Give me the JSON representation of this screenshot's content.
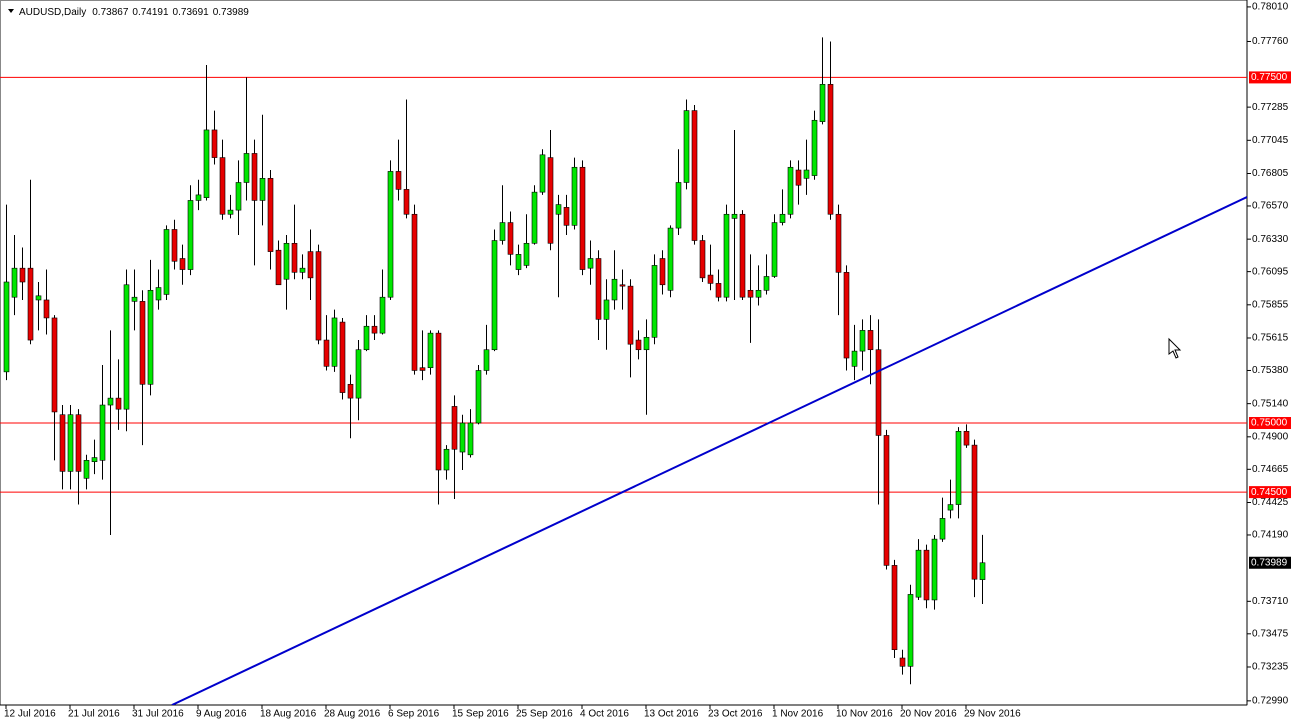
{
  "chart_data": {
    "type": "candlestick",
    "title": "AUDUSD,Daily",
    "header_ohlc": [
      0.73867,
      0.74191,
      0.73691,
      0.73989
    ],
    "up_color": "#00e600",
    "down_color": "#e60000",
    "level_color": "#ff0000",
    "categories": [
      "12 Jul 2016",
      null,
      null,
      null,
      null,
      null,
      null,
      null,
      "21 Jul 2016",
      null,
      null,
      null,
      null,
      null,
      null,
      null,
      "31 Jul 2016",
      null,
      null,
      null,
      null,
      null,
      null,
      null,
      "9 Aug 2016",
      null,
      null,
      null,
      null,
      null,
      null,
      null,
      "18 Aug 2016",
      null,
      null,
      null,
      null,
      null,
      null,
      null,
      "28 Aug 2016",
      null,
      null,
      null,
      null,
      null,
      null,
      null,
      "6 Sep 2016",
      null,
      null,
      null,
      null,
      null,
      null,
      null,
      "15 Sep 2016",
      null,
      null,
      null,
      null,
      null,
      null,
      null,
      "25 Sep 2016",
      null,
      null,
      null,
      null,
      null,
      null,
      null,
      "4 Oct 2016",
      null,
      null,
      null,
      null,
      null,
      null,
      null,
      "13 Oct 2016",
      null,
      null,
      null,
      null,
      null,
      null,
      null,
      "23 Oct 2016",
      null,
      null,
      null,
      null,
      null,
      null,
      null,
      "1 Nov 2016",
      null,
      null,
      null,
      null,
      null,
      null,
      null,
      "10 Nov 2016",
      null,
      null,
      null,
      null,
      null,
      null,
      null,
      "20 Nov 2016",
      null,
      null,
      null,
      null,
      null,
      null,
      null,
      "29 Nov 2016",
      null,
      null
    ],
    "open": [
      0.7537,
      0.7591,
      0.7612,
      0.7612,
      0.7589,
      0.7589,
      0.7576,
      0.7506,
      0.7465,
      0.7506,
      0.746,
      0.7472,
      0.7473,
      0.7513,
      0.7518,
      0.751,
      0.7588,
      0.7588,
      0.7528,
      0.7589,
      0.7593,
      0.764,
      0.7619,
      0.7611,
      0.7661,
      0.7663,
      0.7712,
      0.7692,
      0.7651,
      0.7654,
      0.7674,
      0.7695,
      0.7661,
      0.7677,
      0.7625,
      0.7604,
      0.763,
      0.7609,
      0.7624,
      0.7624,
      0.756,
      0.7541,
      0.7573,
      0.7528,
      0.7518,
      0.7553,
      0.757,
      0.7565,
      0.7591,
      0.7682,
      0.7669,
      0.7651,
      0.754,
      0.754,
      0.7565,
      0.7466,
      0.7512,
      0.7479,
      0.7477,
      0.75,
      0.7538,
      0.7553,
      0.7632,
      0.7645,
      0.7611,
      0.7614,
      0.763,
      0.7667,
      0.7692,
      0.7651,
      0.7656,
      0.7643,
      0.7685,
      0.7612,
      0.7619,
      0.7575,
      0.7589,
      0.76,
      0.7599,
      0.756,
      0.7553,
      0.7562,
      0.7619,
      0.7596,
      0.7641,
      0.7674,
      0.7726,
      0.7632,
      0.7607,
      0.7601,
      0.7591,
      0.7648,
      0.7651,
      0.7596,
      0.7591,
      0.7596,
      0.7606,
      0.7645,
      0.7651,
      0.7683,
      0.7677,
      0.7679,
      0.7718,
      0.7745,
      0.7651,
      0.7609,
      0.7541,
      0.7552,
      0.7567,
      0.7553,
      0.7491,
      0.7397,
      0.733,
      0.7324,
      0.7374,
      0.7408,
      0.7372,
      0.7416,
      0.7437,
      0.7441,
      0.7494,
      0.7484,
      0.73867
    ],
    "high": [
      0.7658,
      0.7636,
      0.7627,
      0.7676,
      0.7602,
      0.7611,
      0.7578,
      0.7513,
      0.7513,
      0.751,
      0.7477,
      0.7488,
      0.7542,
      0.7567,
      0.7546,
      0.7611,
      0.7611,
      0.7596,
      0.7618,
      0.7611,
      0.7643,
      0.7647,
      0.7629,
      0.7672,
      0.7676,
      0.7759,
      0.7726,
      0.7705,
      0.7665,
      0.769,
      0.775,
      0.7705,
      0.7723,
      0.7683,
      0.7632,
      0.7636,
      0.7658,
      0.7622,
      0.764,
      0.7629,
      0.7578,
      0.7582,
      0.7576,
      0.7535,
      0.756,
      0.7578,
      0.7578,
      0.7611,
      0.769,
      0.7705,
      0.7734,
      0.7658,
      0.7567,
      0.7567,
      0.7567,
      0.7484,
      0.752,
      0.7506,
      0.751,
      0.7542,
      0.7571,
      0.764,
      0.7672,
      0.7653,
      0.7629,
      0.7651,
      0.7672,
      0.7698,
      0.7712,
      0.7665,
      0.7665,
      0.7692,
      0.769,
      0.7632,
      0.7625,
      0.7604,
      0.7625,
      0.7611,
      0.7604,
      0.7567,
      0.7575,
      0.7622,
      0.7625,
      0.7643,
      0.7698,
      0.7734,
      0.773,
      0.7636,
      0.7629,
      0.7611,
      0.7658,
      0.7712,
      0.7654,
      0.7622,
      0.7614,
      0.7622,
      0.7651,
      0.7669,
      0.769,
      0.769,
      0.7705,
      0.7726,
      0.7779,
      0.7776,
      0.7658,
      0.7614,
      0.7571,
      0.7575,
      0.7578,
      0.7575,
      0.7495,
      0.7401,
      0.7336,
      0.7383,
      0.7416,
      0.7412,
      0.7419,
      0.7446,
      0.7459,
      0.7497,
      0.7499,
      0.7488,
      0.74191
    ],
    "low": [
      0.7531,
      0.7578,
      0.7589,
      0.7557,
      0.7567,
      0.7564,
      0.7473,
      0.7452,
      0.7452,
      0.7441,
      0.7452,
      0.7463,
      0.7459,
      0.7419,
      0.7495,
      0.7494,
      0.7567,
      0.7484,
      0.752,
      0.7582,
      0.7589,
      0.7611,
      0.76,
      0.7607,
      0.7654,
      0.7661,
      0.7687,
      0.7647,
      0.7648,
      0.7636,
      0.7661,
      0.7614,
      0.7643,
      0.7611,
      0.76,
      0.7582,
      0.7604,
      0.7604,
      0.7589,
      0.7557,
      0.7538,
      0.7537,
      0.7517,
      0.7489,
      0.7502,
      0.7552,
      0.756,
      0.7564,
      0.7589,
      0.7661,
      0.7648,
      0.7535,
      0.7531,
      0.7535,
      0.7441,
      0.7459,
      0.7445,
      0.7466,
      0.7475,
      0.7499,
      0.7535,
      0.7552,
      0.7629,
      0.7614,
      0.7607,
      0.7612,
      0.7629,
      0.7665,
      0.7625,
      0.7591,
      0.7636,
      0.764,
      0.7607,
      0.76,
      0.756,
      0.7553,
      0.7582,
      0.7582,
      0.7533,
      0.7546,
      0.7506,
      0.7557,
      0.7593,
      0.7591,
      0.7636,
      0.7669,
      0.7629,
      0.7602,
      0.7596,
      0.7588,
      0.7588,
      0.7589,
      0.7589,
      0.7558,
      0.7585,
      0.7593,
      0.7605,
      0.7643,
      0.7648,
      0.7658,
      0.7665,
      0.7676,
      0.7716,
      0.7647,
      0.7578,
      0.7538,
      0.7531,
      0.7538,
      0.7528,
      0.7441,
      0.7394,
      0.733,
      0.7318,
      0.7311,
      0.7372,
      0.7366,
      0.7365,
      0.7414,
      0.7431,
      0.7431,
      0.7482,
      0.7374,
      0.73691
    ],
    "close": [
      0.7602,
      0.7612,
      0.7602,
      0.756,
      0.7592,
      0.7576,
      0.7508,
      0.7465,
      0.7506,
      0.7465,
      0.7473,
      0.7475,
      0.7513,
      0.7518,
      0.751,
      0.76,
      0.7591,
      0.7528,
      0.7596,
      0.7598,
      0.764,
      0.7617,
      0.7611,
      0.7661,
      0.7665,
      0.7712,
      0.7692,
      0.7651,
      0.7654,
      0.7674,
      0.7695,
      0.7661,
      0.7677,
      0.7624,
      0.76,
      0.763,
      0.7609,
      0.7612,
      0.7605,
      0.756,
      0.7541,
      0.7576,
      0.7522,
      0.7518,
      0.7553,
      0.757,
      0.7565,
      0.7591,
      0.7682,
      0.7669,
      0.7651,
      0.7538,
      0.7538,
      0.7565,
      0.7466,
      0.7481,
      0.7481,
      0.75,
      0.75,
      0.7538,
      0.7553,
      0.7632,
      0.7645,
      0.7622,
      0.7622,
      0.763,
      0.7667,
      0.7694,
      0.763,
      0.7658,
      0.7643,
      0.7685,
      0.7611,
      0.7619,
      0.7575,
      0.7589,
      0.7604,
      0.7599,
      0.7557,
      0.7553,
      0.7562,
      0.7614,
      0.76,
      0.7641,
      0.7674,
      0.7726,
      0.7632,
      0.7605,
      0.7601,
      0.7591,
      0.7651,
      0.7651,
      0.7591,
      0.7591,
      0.7596,
      0.7606,
      0.7645,
      0.7651,
      0.7685,
      0.7672,
      0.7683,
      0.7719,
      0.7745,
      0.7651,
      0.7609,
      0.7547,
      0.7552,
      0.7567,
      0.7553,
      0.7491,
      0.7397,
      0.7336,
      0.7324,
      0.7376,
      0.7408,
      0.7372,
      0.7416,
      0.7431,
      0.7441,
      0.7494,
      0.7484,
      0.7387,
      0.73989
    ],
    "ylim": [
      0.7296,
      0.7806
    ],
    "yticks": [
      {
        "value": 0.7801,
        "label": "0.78010"
      },
      {
        "value": 0.7776,
        "label": "0.77760"
      },
      0.77285,
      0.77045,
      0.76805,
      {
        "value": 0.7657,
        "label": "0.76570"
      },
      {
        "value": 0.7633,
        "label": "0.76330"
      },
      0.76095,
      0.75855,
      0.75615,
      {
        "value": 0.7538,
        "label": "0.75380"
      },
      {
        "value": 0.7514,
        "label": "0.75140"
      },
      {
        "value": 0.749,
        "label": "0.74900"
      },
      0.74665,
      0.74425,
      {
        "value": 0.7419,
        "label": "0.74190"
      },
      {
        "value": 0.7371,
        "label": "0.73710"
      },
      0.73475,
      0.73235,
      {
        "value": 0.7299,
        "label": "0.72990"
      }
    ],
    "levels": [
      {
        "value": 0.775,
        "label": "0.77500"
      },
      {
        "value": 0.75,
        "label": "0.75000"
      },
      {
        "value": 0.745,
        "label": "0.74500"
      }
    ],
    "last_price": 0.73989
  }
}
